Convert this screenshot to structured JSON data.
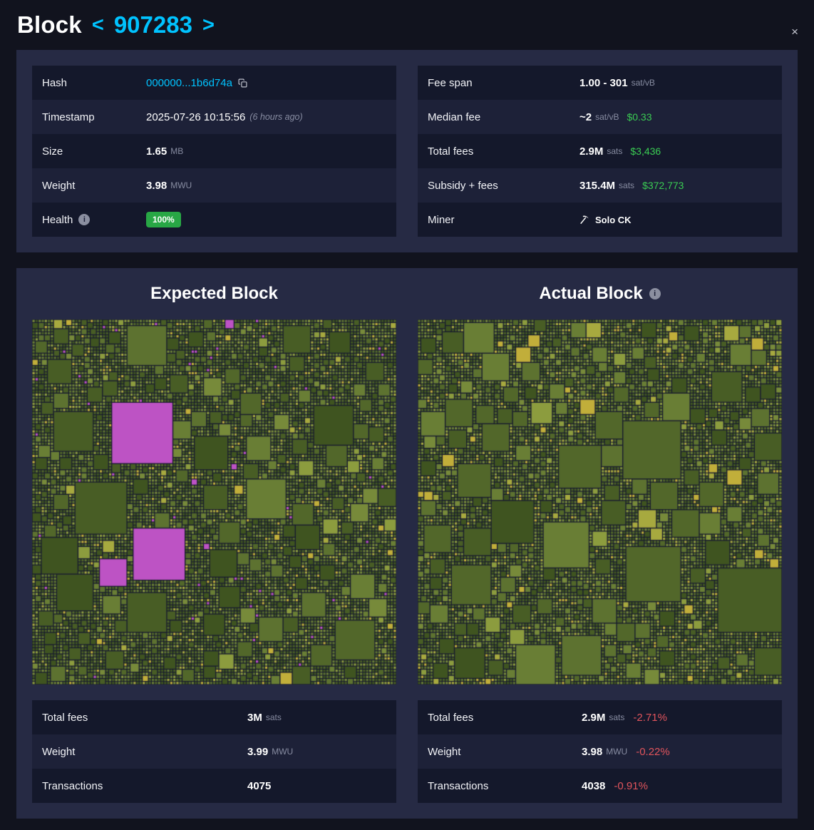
{
  "colors": {
    "accent_cyan": "#00c3ff",
    "positive_green": "#3acc53",
    "negative_red": "#e0545c",
    "badge_green": "#28a745",
    "magenta": "#bd53c4",
    "panel_background": "#262a44",
    "page_background": "#11131e"
  },
  "icons": {
    "info": "i"
  },
  "header": {
    "title": "Block",
    "block_number": "907283",
    "prev_glyph": "<",
    "next_glyph": ">",
    "close_glyph": "×"
  },
  "details": {
    "hash": {
      "label": "Hash",
      "value": "000000...1b6d74a"
    },
    "timestamp": {
      "label": "Timestamp",
      "value": "2025-07-26 10:15:56",
      "ago": "(6 hours ago)"
    },
    "size": {
      "label": "Size",
      "value": "1.65",
      "unit": "MB"
    },
    "weight": {
      "label": "Weight",
      "value": "3.98",
      "unit": "MWU"
    },
    "health": {
      "label": "Health",
      "value": "100%"
    },
    "fee_span": {
      "label": "Fee span",
      "value": "1.00 - 301",
      "unit": "sat/vB"
    },
    "median_fee": {
      "label": "Median fee",
      "value": "~2",
      "unit": "sat/vB",
      "usd": "$0.33"
    },
    "total_fees": {
      "label": "Total fees",
      "value": "2.9M",
      "unit": "sats",
      "usd": "$3,436"
    },
    "subsidy_fees": {
      "label": "Subsidy + fees",
      "value": "315.4M",
      "unit": "sats",
      "usd": "$372,773"
    },
    "miner": {
      "label": "Miner",
      "value": "Solo CK"
    }
  },
  "expected": {
    "title": "Expected Block",
    "stats": {
      "total_fees": {
        "label": "Total fees",
        "value": "3M",
        "unit": "sats"
      },
      "weight": {
        "label": "Weight",
        "value": "3.99",
        "unit": "MWU"
      },
      "transactions": {
        "label": "Transactions",
        "value": "4075"
      }
    },
    "viz": {
      "seed": 1337,
      "background": "#181b2e",
      "magenta": "#bd53c4",
      "magenta_prob": 0.008,
      "palette": [
        "#3f5420",
        "#485d25",
        "#52672a",
        "#5d7230",
        "#697e35",
        "#778a3a",
        "#8c9c3e",
        "#a7a93f",
        "#c1ae3a"
      ],
      "weights": [
        22,
        18,
        15,
        13,
        11,
        8,
        6,
        4,
        3
      ],
      "squares": [
        {
          "count": 3,
          "min": 16,
          "max": 21
        },
        {
          "count": 9,
          "min": 10,
          "max": 15
        },
        {
          "count": 28,
          "min": 6,
          "max": 9
        },
        {
          "count": 110,
          "min": 3,
          "max": 5
        },
        {
          "count": 420,
          "min": 2,
          "max": 2
        }
      ]
    }
  },
  "actual": {
    "title": "Actual Block",
    "stats": {
      "total_fees": {
        "label": "Total fees",
        "value": "2.9M",
        "unit": "sats",
        "delta": "-2.71%"
      },
      "weight": {
        "label": "Weight",
        "value": "3.98",
        "unit": "MWU",
        "delta": "-0.22%"
      },
      "transactions": {
        "label": "Transactions",
        "value": "4038",
        "delta": "-0.91%"
      }
    },
    "viz": {
      "seed": 907,
      "background": "#181b2e",
      "magenta": "#bd53c4",
      "magenta_prob": 0,
      "palette": [
        "#3f5420",
        "#485d25",
        "#52672a",
        "#5d7230",
        "#697e35",
        "#778a3a",
        "#8c9c3e",
        "#a7a93f",
        "#c1ae3a"
      ],
      "weights": [
        18,
        16,
        15,
        14,
        12,
        10,
        7,
        5,
        3
      ],
      "squares": [
        {
          "count": 3,
          "min": 16,
          "max": 21
        },
        {
          "count": 10,
          "min": 10,
          "max": 15
        },
        {
          "count": 30,
          "min": 6,
          "max": 9
        },
        {
          "count": 115,
          "min": 3,
          "max": 5
        },
        {
          "count": 430,
          "min": 2,
          "max": 2
        }
      ]
    }
  }
}
